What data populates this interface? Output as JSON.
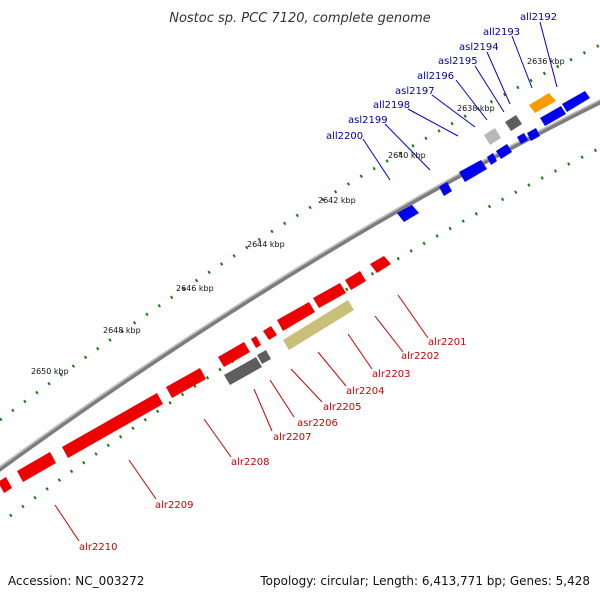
{
  "title": "Nostoc sp. PCC 7120, complete genome",
  "accession": "Accession: NC_003272",
  "topology": "Topology: circular; Length: 6,413,771 bp; Genes: 5,428",
  "colors": {
    "forward_gene": "#ff0000",
    "reverse_gene": "#0000ff",
    "label_forward": "#cc0000",
    "label_reverse": "#0000aa",
    "backbone": "#888888",
    "ticks": "#1a7a1a",
    "grey_gene": "#6e6e6e",
    "light_grey_gene": "#b8b8b8",
    "orange_gene": "#ff9900",
    "olive_gene": "#c8c078"
  },
  "kbp_labels": [
    "2636 kbp",
    "2638 kbp",
    "2640 kbp",
    "2642 kbp",
    "2644 kbp",
    "2646 kbp",
    "2648 kbp",
    "2650 kbp"
  ],
  "labels_reverse": [
    "all2192",
    "all2193",
    "asl2194",
    "asl2195",
    "all2196",
    "asl2197",
    "all2198",
    "asl2199",
    "all2200"
  ],
  "labels_forward": [
    "alr2201",
    "alr2202",
    "alr2203",
    "alr2204",
    "alr2205",
    "asr2206",
    "alr2207",
    "alr2208",
    "alr2209",
    "alr2210"
  ]
}
